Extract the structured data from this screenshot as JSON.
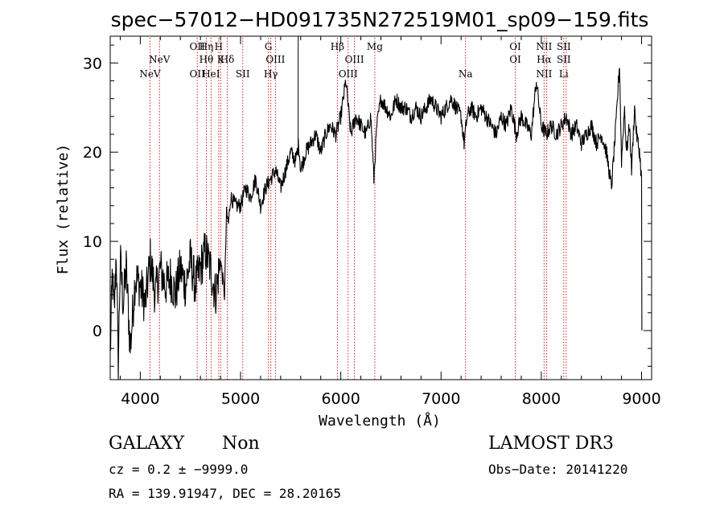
{
  "chart_data": {
    "type": "line",
    "title": "spec−57012−HD091735N272519M01_sp09−159.fits",
    "xlabel": "Wavelength (Å)",
    "ylabel": "Flux (relative)",
    "xlim": [
      3700,
      9100
    ],
    "ylim": [
      -5.5,
      33
    ],
    "xticks": [
      4000,
      5000,
      6000,
      7000,
      8000,
      9000
    ],
    "yticks": [
      0,
      10,
      20,
      30
    ],
    "grid": false,
    "series": [
      {
        "name": "spectrum",
        "x": [
          3700,
          3720,
          3740,
          3760,
          3780,
          3800,
          3830,
          3860,
          3900,
          3950,
          4000,
          4050,
          4100,
          4150,
          4200,
          4250,
          4300,
          4350,
          4400,
          4450,
          4500,
          4550,
          4600,
          4650,
          4700,
          4750,
          4800,
          4820,
          4840,
          4860,
          4880,
          4900,
          4950,
          5000,
          5050,
          5100,
          5150,
          5200,
          5250,
          5300,
          5350,
          5400,
          5450,
          5500,
          5550,
          5580,
          5600,
          5650,
          5700,
          5750,
          5800,
          5850,
          5893,
          5950,
          6000,
          6050,
          6100,
          6150,
          6200,
          6250,
          6300,
          6330,
          6360,
          6400,
          6450,
          6500,
          6550,
          6600,
          6650,
          6700,
          6750,
          6800,
          6850,
          6900,
          6950,
          7000,
          7050,
          7100,
          7150,
          7200,
          7230,
          7260,
          7300,
          7350,
          7400,
          7450,
          7500,
          7550,
          7600,
          7650,
          7700,
          7750,
          7800,
          7850,
          7900,
          7950,
          8000,
          8050,
          8100,
          8150,
          8200,
          8250,
          8300,
          8350,
          8400,
          8450,
          8500,
          8550,
          8600,
          8650,
          8700,
          8750,
          8780,
          8800,
          8830,
          8850,
          8880,
          8900,
          8930,
          8950,
          8980,
          9000,
          9003
        ],
        "values": [
          -3,
          6,
          2,
          9,
          -4,
          8,
          3,
          7,
          -2,
          6,
          5,
          3,
          8,
          4,
          7,
          5,
          6,
          4,
          7,
          5,
          8,
          5,
          7,
          9,
          7,
          4,
          8,
          6,
          4,
          13,
          12,
          15,
          14,
          14,
          16,
          15,
          17,
          14,
          16,
          17,
          18,
          16,
          18,
          20,
          19,
          21,
          18,
          20,
          21,
          22,
          20,
          22,
          23,
          22,
          24,
          28,
          22,
          24,
          23,
          22,
          24,
          17,
          23,
          26,
          25,
          24,
          26,
          25,
          25,
          24,
          25,
          24,
          25,
          26,
          25,
          24,
          25,
          26,
          25,
          24,
          21,
          24,
          25,
          24,
          25,
          24,
          23,
          22,
          24,
          23,
          25,
          22,
          24,
          23,
          22,
          28,
          23,
          22,
          23,
          22,
          23,
          24,
          22,
          23,
          21,
          22,
          23,
          21,
          22,
          20,
          16,
          24,
          30,
          19,
          25,
          20,
          23,
          18,
          25,
          22,
          20,
          17,
          0
        ]
      }
    ],
    "spectral_lines": [
      {
        "wl": 4097,
        "labels": [
          "NeV"
        ],
        "row": 2
      },
      {
        "wl": 4192,
        "labels": [
          "NeV"
        ],
        "row": 1
      },
      {
        "wl": 4568,
        "labels": [
          "OII",
          "OII"
        ],
        "rows": [
          0,
          2
        ]
      },
      {
        "wl": 4659,
        "labels": [
          "Hη",
          "Hθ"
        ],
        "rows": [
          0,
          1
        ]
      },
      {
        "wl": 4706,
        "labels": [
          "HeI"
        ],
        "row": 2
      },
      {
        "wl": 4782,
        "labels": [
          "H"
        ],
        "row": 0
      },
      {
        "wl": 4802,
        "labels": [
          "K"
        ],
        "row": 1
      },
      {
        "wl": 4868,
        "labels": [
          "Hδ"
        ],
        "row": 1
      },
      {
        "wl": 5022,
        "labels": [
          "SII"
        ],
        "row": 2
      },
      {
        "wl": 5278,
        "labels": [
          "G"
        ],
        "row": 0
      },
      {
        "wl": 5302,
        "labels": [
          "Hγ"
        ],
        "row": 2
      },
      {
        "wl": 5348,
        "labels": [
          "OIII"
        ],
        "row": 1
      },
      {
        "wl": 5966,
        "labels": [
          "Hβ"
        ],
        "row": 0
      },
      {
        "wl": 6073,
        "labels": [
          "OIII"
        ],
        "row": 2
      },
      {
        "wl": 6136,
        "labels": [
          "OIII"
        ],
        "row": 1
      },
      {
        "wl": 6339,
        "labels": [
          "Mg"
        ],
        "row": 0
      },
      {
        "wl": 7244,
        "labels": [
          "Na"
        ],
        "row": 2
      },
      {
        "wl": 7740,
        "labels": [
          "OI",
          "OI"
        ],
        "rows": [
          0,
          1
        ]
      },
      {
        "wl": 8028,
        "labels": [
          "NII",
          "Hα",
          "NII"
        ],
        "rows": [
          0,
          1,
          2
        ]
      },
      {
        "wl": 8054,
        "labels": [],
        "rows": []
      },
      {
        "wl": 8224,
        "labels": [
          "SII",
          "SII",
          "Li"
        ],
        "rows": [
          0,
          1,
          2
        ]
      },
      {
        "wl": 8248,
        "labels": [],
        "rows": []
      }
    ],
    "sky_line_wl": 5575
  },
  "info": {
    "type_label": "GALAXY",
    "subclass": "Non",
    "cz": "cz = 0.2 ± −9999.0",
    "radec": "RA = 139.91947, DEC =  28.20165",
    "survey": "LAMOST DR3",
    "obs_date": "Obs−Date: 20141220"
  }
}
